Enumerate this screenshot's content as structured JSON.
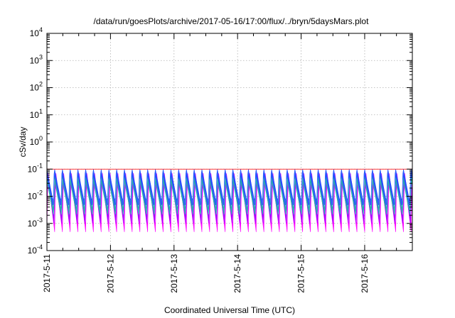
{
  "chart_data": {
    "type": "line",
    "title": "/data/run/goesPlots/archive/2017-05-16/17:00/flux/../bryn/5daysMars.plot",
    "xlabel": "Coordinated Universal Time (UTC)",
    "ylabel": "cSv/day",
    "y_scale": "log",
    "ylim": [
      0.0001,
      10000
    ],
    "y_ticks": [
      {
        "value": 0.0001,
        "base": "10",
        "exp": "-4"
      },
      {
        "value": 0.001,
        "base": "10",
        "exp": "-3"
      },
      {
        "value": 0.01,
        "base": "10",
        "exp": "-2"
      },
      {
        "value": 0.1,
        "base": "10",
        "exp": "-1"
      },
      {
        "value": 1,
        "base": "10",
        "exp": "0"
      },
      {
        "value": 10,
        "base": "10",
        "exp": "1"
      },
      {
        "value": 100,
        "base": "10",
        "exp": "2"
      },
      {
        "value": 1000,
        "base": "10",
        "exp": "3"
      },
      {
        "value": 10000,
        "base": "10",
        "exp": "4"
      }
    ],
    "xlim": [
      "2017-05-11",
      "2017-05-16T18:00"
    ],
    "x_ticks": [
      "2017-5-11",
      "2017-5-12",
      "2017-5-13",
      "2017-5-14",
      "2017-5-15",
      "2017-5-16"
    ],
    "grid": true,
    "reference_level": 0.1,
    "sawtooth_cycles_per_day": 8.2,
    "series": [
      {
        "color": "#ff00ff",
        "peak": 0.09,
        "trough": 0.0008
      },
      {
        "color": "#a000ff",
        "peak": 0.08,
        "trough": 0.0015
      },
      {
        "color": "#20b2aa",
        "peak": 0.06,
        "trough": 0.003
      },
      {
        "color": "#2050ff",
        "peak": 0.12,
        "trough": 0.006
      }
    ],
    "colors": {
      "reference": "#ff0000",
      "grid": "#b0b0b0",
      "axis": "#000000"
    }
  }
}
